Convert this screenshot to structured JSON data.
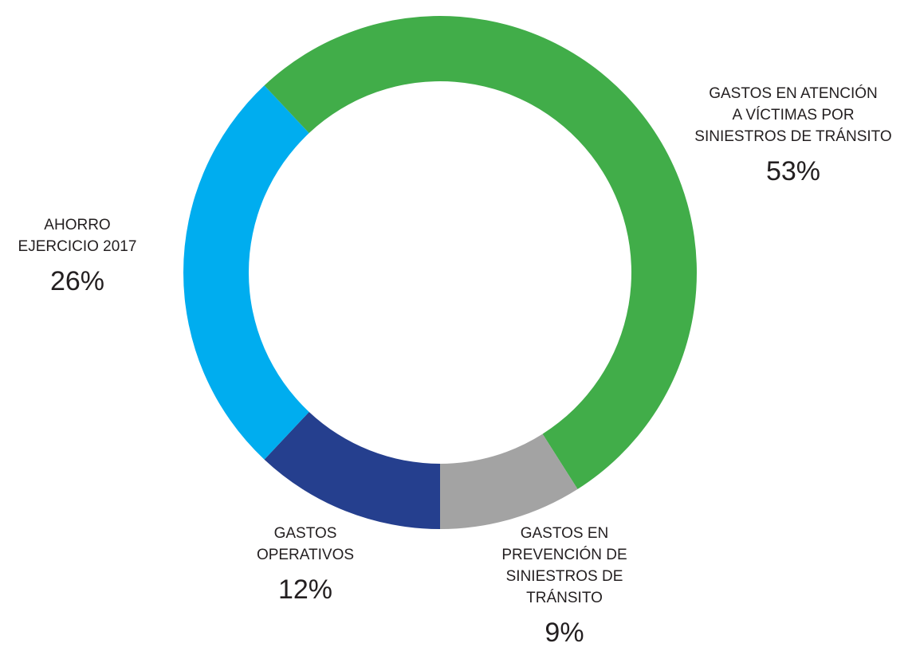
{
  "chart_data": {
    "type": "donut",
    "categories": [
      [
        "GASTOS",
        "OPERATIVOS"
      ],
      [
        "AHORRO",
        "EJERCICIO 2017"
      ],
      [
        "GASTOS EN ATENCIÓN",
        "A VÍCTIMAS POR",
        "SINIESTROS DE TRÁNSITO"
      ],
      [
        "GASTOS EN",
        "PREVENCIÓN DE",
        "SINIESTROS DE",
        "TRÁNSITO"
      ]
    ],
    "values": [
      12,
      26,
      53,
      9
    ],
    "value_labels": [
      "12%",
      "26%",
      "53%",
      "9%"
    ],
    "colors": [
      "#253f8e",
      "#00adef",
      "#41ad49",
      "#a3a3a3"
    ]
  }
}
